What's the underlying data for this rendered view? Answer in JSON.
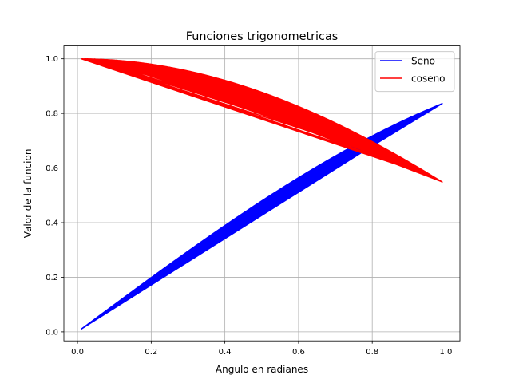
{
  "chart_data": {
    "type": "line",
    "title": "Funciones trigonometricas",
    "xlabel": "Angulo en radianes",
    "ylabel": "Valor de la funcion",
    "xlim": [
      -0.037,
      1.038
    ],
    "ylim": [
      -0.033,
      1.047
    ],
    "xticks": [
      0.0,
      0.2,
      0.4,
      0.6,
      0.8,
      1.0
    ],
    "xtick_labels": [
      "0.0",
      "0.2",
      "0.4",
      "0.6",
      "0.8",
      "1.0"
    ],
    "yticks": [
      0.0,
      0.2,
      0.4,
      0.6,
      0.8,
      1.0
    ],
    "ytick_labels": [
      "0.0",
      "0.2",
      "0.4",
      "0.6",
      "0.8",
      "1.0"
    ],
    "grid": true,
    "legend_position": "upper right",
    "x_range": [
      0.01,
      0.99
    ],
    "series": [
      {
        "name": "Seno",
        "color": "#0000ff",
        "function": "sin",
        "x": [
          0.01,
          0.1,
          0.2,
          0.3,
          0.4,
          0.5,
          0.6,
          0.7,
          0.8,
          0.9,
          0.99
        ],
        "y": [
          0.01,
          0.0998,
          0.1987,
          0.2955,
          0.3894,
          0.4794,
          0.5646,
          0.6442,
          0.7174,
          0.7833,
          0.8365
        ]
      },
      {
        "name": "coseno",
        "color": "#ff0000",
        "function": "cos",
        "x": [
          0.01,
          0.1,
          0.2,
          0.3,
          0.4,
          0.5,
          0.6,
          0.7,
          0.8,
          0.9,
          0.99
        ],
        "y": [
          0.99995,
          0.995,
          0.9801,
          0.9553,
          0.9211,
          0.8776,
          0.8253,
          0.7648,
          0.6967,
          0.6216,
          0.5487
        ]
      }
    ]
  }
}
